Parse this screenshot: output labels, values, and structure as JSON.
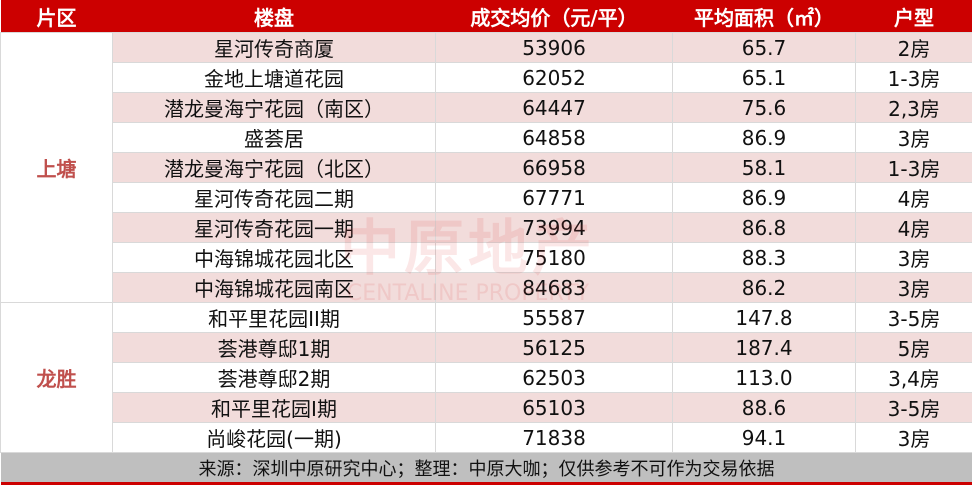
{
  "headers": [
    "片区",
    "楼盘",
    "成交均价（元/平）",
    "平均面积（㎡）",
    "户型"
  ],
  "groups": [
    {
      "district": "上塘",
      "rows": [
        [
          "星河传奇商厦",
          "53906",
          "65.7",
          "2房"
        ],
        [
          "金地上塘道花园",
          "62052",
          "65.1",
          "1-3房"
        ],
        [
          "潜龙曼海宁花园（南区）",
          "64447",
          "75.6",
          "2,3房"
        ],
        [
          "盛荟居",
          "64858",
          "86.9",
          "3房"
        ],
        [
          "潜龙曼海宁花园（北区）",
          "66958",
          "58.1",
          "1-3房"
        ],
        [
          "星河传奇花园二期",
          "67771",
          "86.9",
          "4房"
        ],
        [
          "星河传奇花园一期",
          "73994",
          "86.8",
          "4房"
        ],
        [
          "中海锦城花园北区",
          "75180",
          "88.3",
          "3房"
        ],
        [
          "中海锦城花园南区",
          "84683",
          "86.2",
          "3房"
        ]
      ]
    },
    {
      "district": "龙胜",
      "rows": [
        [
          "和平里花园II期",
          "55587",
          "147.8",
          "3-5房"
        ],
        [
          "荟港尊邸1期",
          "56125",
          "187.4",
          "5房"
        ],
        [
          "荟港尊邸2期",
          "62503",
          "113.0",
          "3,4房"
        ],
        [
          "和平里花园I期",
          "65103",
          "88.6",
          "3-5房"
        ],
        [
          "尚峻花园(一期)",
          "71838",
          "94.1",
          "3房"
        ]
      ]
    }
  ],
  "footer": "来源：深圳中原研究中心；整理：中原大咖；仅供参考不可作为交易依据",
  "watermark": {
    "cn": "中原地产",
    "en": "CENTALINE PROPERTY"
  },
  "colors": {
    "header": "#cc0000",
    "stripe": "#f2dcdb",
    "district": "#c0504d",
    "footer": "#bfbfbf"
  }
}
